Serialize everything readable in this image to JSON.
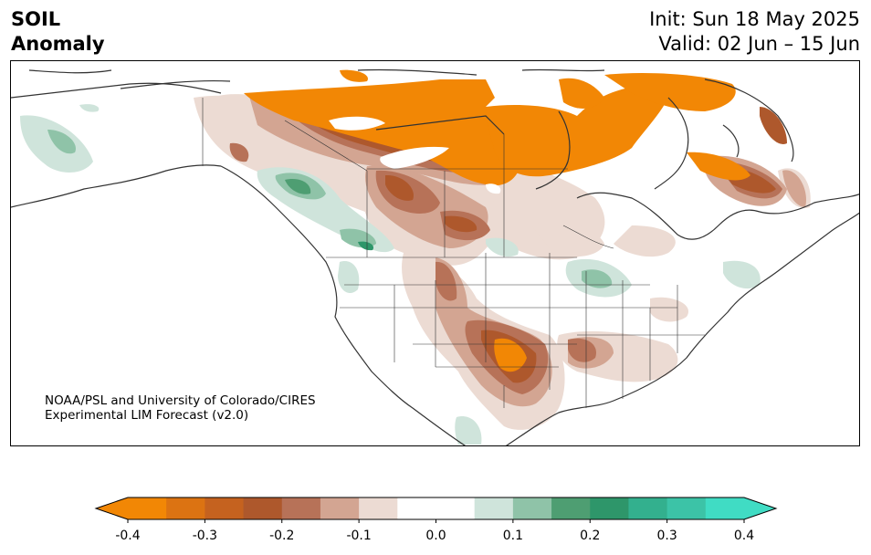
{
  "title": {
    "line1": "SOIL",
    "line2": "Anomaly",
    "init": "Init: Sun 18 May 2025",
    "valid": "Valid: 02 Jun – 15 Jun"
  },
  "credit": {
    "line1": "NOAA/PSL and University of Colorado/CIRES",
    "line2": "Experimental LIM Forecast (v2.0)"
  },
  "colorbar": {
    "min": -0.4,
    "max": 0.4,
    "ticks": [
      "-0.4",
      "-0.3",
      "-0.2",
      "-0.1",
      "0.0",
      "0.1",
      "0.2",
      "0.3",
      "0.4"
    ],
    "colors": [
      "#f28705",
      "#dc7312",
      "#c5621f",
      "#ae582c",
      "#b77258",
      "#d3a592",
      "#ecdbd3",
      "#ffffff",
      "#ffffff",
      "#cfe4db",
      "#8fc3a8",
      "#4e9e72",
      "#2e966a",
      "#33b08e",
      "#3cc3a7",
      "#40dcc4"
    ],
    "under_color": "#f28705",
    "over_color": "#40dcc4"
  }
}
